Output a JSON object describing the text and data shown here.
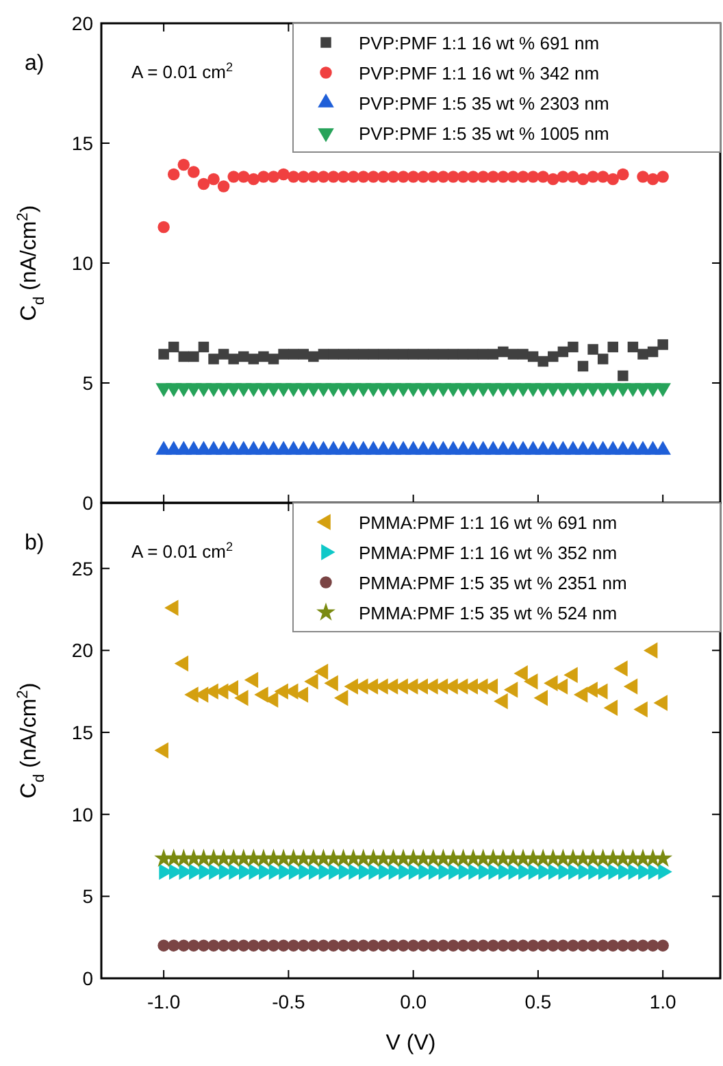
{
  "chart_data": [
    {
      "type": "scatter",
      "ylabel": "C$_{d}$ (nA/cm$^{2}$)",
      "annotations": [
        "a)",
        "A = 0.01 cm$^{2}$"
      ],
      "xlim": [
        -1.25,
        1.23
      ],
      "xticks": [
        {
          "value": -1,
          "label": null
        },
        {
          "value": -0.5,
          "label": null
        },
        {
          "value": 0,
          "label": null
        },
        {
          "value": 0.5,
          "label": null
        },
        {
          "value": 1,
          "label": null
        }
      ],
      "ylim": [
        0,
        20
      ],
      "yticks": [
        0,
        5,
        10,
        15,
        20
      ],
      "tick_labels": "y",
      "legend": "top right",
      "x": [
        -1,
        -0.96,
        -0.92,
        -0.88,
        -0.84,
        -0.8,
        -0.76,
        -0.72,
        -0.68,
        -0.64,
        -0.6,
        -0.56,
        -0.52,
        -0.48,
        -0.44,
        -0.4,
        -0.36,
        -0.32,
        -0.28,
        -0.24,
        -0.2,
        -0.16,
        -0.12,
        -0.08,
        -0.04,
        0,
        0.04,
        0.08,
        0.12,
        0.16,
        0.2,
        0.24,
        0.28,
        0.32,
        0.36,
        0.4,
        0.44,
        0.48,
        0.52,
        0.56,
        0.6,
        0.64,
        0.68,
        0.72,
        0.76,
        0.8,
        0.84,
        0.88,
        0.92,
        0.96,
        1
      ],
      "series": [
        {
          "name": "PVP:PMF 1:1 16 wt % 691 nm",
          "color": "#404040",
          "marker": "square",
          "values": [
            6.2,
            6.5,
            6.1,
            6.1,
            6.5,
            6.0,
            6.2,
            6.0,
            6.1,
            6.0,
            6.1,
            6.0,
            6.2,
            6.2,
            6.2,
            6.1,
            6.2,
            6.2,
            6.2,
            6.2,
            6.2,
            6.2,
            6.2,
            6.2,
            6.2,
            6.2,
            6.2,
            6.2,
            6.2,
            6.2,
            6.2,
            6.2,
            6.2,
            6.2,
            6.3,
            6.2,
            6.2,
            6.1,
            5.9,
            6.1,
            6.3,
            6.5,
            5.7,
            6.4,
            6.0,
            6.5,
            5.3,
            6.5,
            6.2,
            6.3,
            6.6
          ]
        },
        {
          "name": "PVP:PMF 1:1 16 wt % 342 nm",
          "color": "#f04040",
          "marker": "circle",
          "values": [
            11.5,
            13.7,
            14.1,
            13.8,
            13.3,
            13.5,
            13.2,
            13.6,
            13.6,
            13.5,
            13.6,
            13.6,
            13.7,
            13.6,
            13.6,
            13.6,
            13.6,
            13.6,
            13.6,
            13.6,
            13.6,
            13.6,
            13.6,
            13.6,
            13.6,
            13.6,
            13.6,
            13.6,
            13.6,
            13.6,
            13.6,
            13.6,
            13.6,
            13.6,
            13.6,
            13.6,
            13.6,
            13.6,
            13.6,
            13.5,
            13.6,
            13.6,
            13.5,
            13.6,
            13.6,
            13.5,
            13.7,
            null,
            13.6,
            13.5,
            13.6
          ]
        },
        {
          "name": "PVP:PMF 1:5 35 wt % 2303 nm",
          "color": "#1f5fd8",
          "marker": "triangle",
          "values": [
            2.2,
            2.2,
            2.2,
            2.2,
            2.2,
            2.2,
            2.2,
            2.2,
            2.2,
            2.2,
            2.2,
            2.2,
            2.2,
            2.2,
            2.2,
            2.2,
            2.2,
            2.2,
            2.2,
            2.2,
            2.2,
            2.2,
            2.2,
            2.2,
            2.2,
            2.2,
            2.2,
            2.2,
            2.2,
            2.2,
            2.2,
            2.2,
            2.2,
            2.2,
            2.2,
            2.2,
            2.2,
            2.2,
            2.2,
            2.2,
            2.2,
            2.2,
            2.2,
            2.2,
            2.2,
            2.2,
            2.2,
            2.2,
            2.2,
            2.2,
            2.2
          ]
        },
        {
          "name": "PVP:PMF 1:5 35 wt % 1005 nm",
          "color": "#27a35a",
          "marker": "triangle-down",
          "values": [
            4.8,
            4.8,
            4.8,
            4.8,
            4.8,
            4.8,
            4.8,
            4.8,
            4.8,
            4.8,
            4.8,
            4.8,
            4.8,
            4.8,
            4.8,
            4.8,
            4.8,
            4.8,
            4.8,
            4.8,
            4.8,
            4.8,
            4.8,
            4.8,
            4.8,
            4.8,
            4.8,
            4.8,
            4.8,
            4.8,
            4.8,
            4.8,
            4.8,
            4.8,
            4.8,
            4.8,
            4.8,
            4.8,
            4.8,
            4.8,
            4.8,
            4.8,
            4.8,
            4.8,
            4.8,
            4.8,
            4.8,
            4.8,
            4.8,
            4.8,
            4.8
          ]
        }
      ]
    },
    {
      "type": "scatter",
      "xlabel": "V (V)",
      "ylabel": "C$_{d}$ (nA/cm$^{2}$)",
      "annotations": [
        "b)",
        "A = 0.01 cm$^{2}$"
      ],
      "xlim": [
        -1.25,
        1.23
      ],
      "xticks": [
        {
          "value": -1,
          "label": "-1.0"
        },
        {
          "value": -0.5,
          "label": "-0.5"
        },
        {
          "value": 0,
          "label": "0.0"
        },
        {
          "value": 0.5,
          "label": "0.5"
        },
        {
          "value": 1,
          "label": "1.0"
        }
      ],
      "ylim": [
        0,
        29
      ],
      "yticks": [
        0,
        5,
        10,
        15,
        20,
        25
      ],
      "legend": "top right",
      "x": [
        -1,
        -0.96,
        -0.92,
        -0.88,
        -0.84,
        -0.8,
        -0.76,
        -0.72,
        -0.68,
        -0.64,
        -0.6,
        -0.56,
        -0.52,
        -0.48,
        -0.44,
        -0.4,
        -0.36,
        -0.32,
        -0.28,
        -0.24,
        -0.2,
        -0.16,
        -0.12,
        -0.08,
        -0.04,
        0,
        0.04,
        0.08,
        0.12,
        0.16,
        0.2,
        0.24,
        0.28,
        0.32,
        0.36,
        0.4,
        0.44,
        0.48,
        0.52,
        0.56,
        0.6,
        0.64,
        0.68,
        0.72,
        0.76,
        0.8,
        0.84,
        0.88,
        0.92,
        0.96,
        1
      ],
      "series": [
        {
          "name": "PMMA:PMF 1:1 16 wt % 691 nm",
          "color": "#d4a010",
          "marker": "triangle-left",
          "values": [
            13.9,
            22.6,
            19.2,
            17.3,
            17.3,
            17.5,
            17.5,
            17.7,
            17.1,
            18.2,
            17.3,
            17.0,
            17.5,
            17.5,
            17.3,
            18.1,
            18.7,
            18.0,
            17.1,
            17.8,
            17.8,
            17.8,
            17.8,
            17.8,
            17.8,
            17.8,
            17.8,
            17.8,
            17.8,
            17.8,
            17.8,
            17.8,
            17.8,
            17.8,
            16.9,
            17.6,
            18.6,
            18.1,
            17.1,
            18.0,
            17.8,
            18.5,
            17.3,
            17.6,
            17.5,
            16.5,
            18.9,
            17.8,
            16.4,
            20.0,
            16.8
          ]
        },
        {
          "name": "PMMA:PMF 1:1 16 wt % 352 nm",
          "color": "#10c8c8",
          "marker": "triangle-right",
          "values": [
            6.5,
            6.5,
            6.5,
            6.5,
            6.5,
            6.5,
            6.5,
            6.5,
            6.5,
            6.5,
            6.5,
            6.5,
            6.5,
            6.5,
            6.5,
            6.5,
            6.5,
            6.5,
            6.5,
            6.5,
            6.5,
            6.5,
            6.5,
            6.5,
            6.5,
            6.5,
            6.5,
            6.5,
            6.5,
            6.5,
            6.5,
            6.5,
            6.5,
            6.5,
            6.5,
            6.5,
            6.5,
            6.5,
            6.5,
            6.5,
            6.5,
            6.5,
            6.5,
            6.5,
            6.5,
            6.5,
            6.5,
            6.5,
            6.5,
            6.5,
            6.5
          ]
        },
        {
          "name": "PMMA:PMF 1:5 35 wt % 2351 nm",
          "color": "#7a4444",
          "marker": "circle",
          "values": [
            2.0,
            2.0,
            2.0,
            2.0,
            2.0,
            2.0,
            2.0,
            2.0,
            2.0,
            2.0,
            2.0,
            2.0,
            2.0,
            2.0,
            2.0,
            2.0,
            2.0,
            2.0,
            2.0,
            2.0,
            2.0,
            2.0,
            2.0,
            2.0,
            2.0,
            2.0,
            2.0,
            2.0,
            2.0,
            2.0,
            2.0,
            2.0,
            2.0,
            2.0,
            2.0,
            2.0,
            2.0,
            2.0,
            2.0,
            2.0,
            2.0,
            2.0,
            2.0,
            2.0,
            2.0,
            2.0,
            2.0,
            2.0,
            2.0,
            2.0,
            2.0
          ]
        },
        {
          "name": "PMMA:PMF 1:5 35 wt % 524 nm",
          "color": "#7a8a10",
          "marker": "star",
          "values": [
            7.3,
            7.3,
            7.3,
            7.3,
            7.3,
            7.3,
            7.3,
            7.3,
            7.3,
            7.3,
            7.3,
            7.3,
            7.3,
            7.3,
            7.3,
            7.3,
            7.3,
            7.3,
            7.3,
            7.3,
            7.3,
            7.3,
            7.3,
            7.3,
            7.3,
            7.3,
            7.3,
            7.3,
            7.3,
            7.3,
            7.3,
            7.3,
            7.3,
            7.3,
            7.3,
            7.3,
            7.3,
            7.3,
            7.3,
            7.3,
            7.3,
            7.3,
            7.3,
            7.3,
            7.3,
            7.3,
            7.3,
            7.3,
            7.3,
            7.3,
            7.3
          ]
        }
      ]
    }
  ]
}
